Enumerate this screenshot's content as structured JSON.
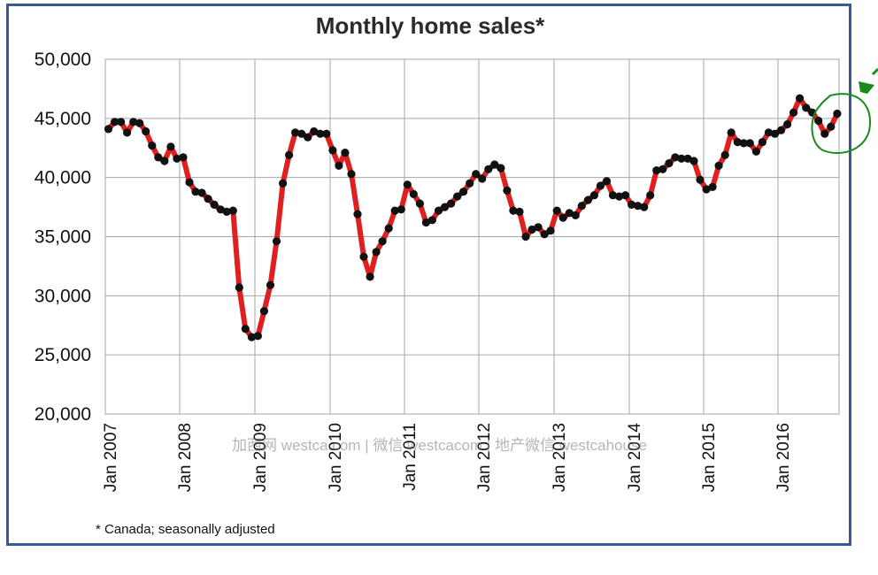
{
  "chart_data": {
    "type": "line",
    "title": "Monthly home sales*",
    "footnote": "* Canada; seasonally adjusted",
    "xlabel": "",
    "ylabel": "",
    "ylim": [
      20000,
      50000
    ],
    "yticks": [
      "20,000",
      "25,000",
      "30,000",
      "35,000",
      "40,000",
      "45,000",
      "50,000"
    ],
    "xticks": [
      "Jan 2007",
      "Jan 2008",
      "Jan 2009",
      "Jan 2010",
      "Jan 2011",
      "Jan 2012",
      "Jan 2013",
      "Jan 2014",
      "Jan 2015",
      "Jan 2016"
    ],
    "grid": true,
    "legend": "none",
    "series": [
      {
        "start": "2007-01",
        "frequency": "monthly",
        "line_color": "#e02020",
        "marker_color": "#111111",
        "values": [
          44100,
          44700,
          44700,
          43800,
          44700,
          44600,
          43900,
          42700,
          41700,
          41400,
          42600,
          41600,
          41700,
          39600,
          38800,
          38700,
          38200,
          37700,
          37300,
          37100,
          37200,
          30700,
          27200,
          26500,
          26600,
          28700,
          30900,
          34600,
          39500,
          41900,
          43800,
          43700,
          43400,
          43900,
          43700,
          43700,
          42300,
          41000,
          42100,
          40300,
          36900,
          33300,
          31600,
          33700,
          34600,
          35700,
          37200,
          37300,
          39400,
          38600,
          37800,
          36200,
          36400,
          37200,
          37500,
          37800,
          38400,
          38800,
          39500,
          40300,
          39900,
          40700,
          41100,
          40800,
          38900,
          37200,
          37100,
          35000,
          35600,
          35800,
          35200,
          35500,
          37200,
          36600,
          37000,
          36800,
          37600,
          38100,
          38500,
          39300,
          39700,
          38500,
          38400,
          38500,
          37700,
          37600,
          37500,
          38500,
          40600,
          40700,
          41200,
          41700,
          41600,
          41600,
          41400,
          39800,
          39000,
          39200,
          41000,
          41900,
          43800,
          43000,
          42900,
          42900,
          42200,
          43000,
          43800,
          43700,
          44000,
          44500,
          45500,
          46700,
          45900,
          45500,
          44800,
          43700,
          44300,
          45400
        ]
      }
    ],
    "annotation": "hand-drawn green circle and arrow highlighting the latest months"
  },
  "watermark": "加西网 westca.com | 微信 westcacom | 地产微信 westcahouse"
}
